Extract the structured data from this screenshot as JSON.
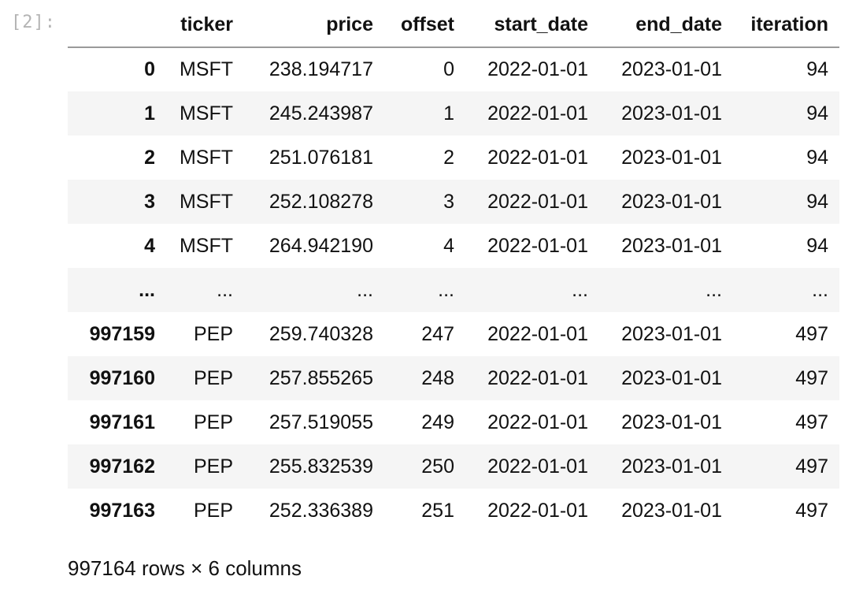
{
  "cell": {
    "prompt": "[2]:"
  },
  "table": {
    "columns": [
      "",
      "ticker",
      "price",
      "offset",
      "start_date",
      "end_date",
      "iteration"
    ],
    "rows": [
      [
        "0",
        "MSFT",
        "238.194717",
        "0",
        "2022-01-01",
        "2023-01-01",
        "94"
      ],
      [
        "1",
        "MSFT",
        "245.243987",
        "1",
        "2022-01-01",
        "2023-01-01",
        "94"
      ],
      [
        "2",
        "MSFT",
        "251.076181",
        "2",
        "2022-01-01",
        "2023-01-01",
        "94"
      ],
      [
        "3",
        "MSFT",
        "252.108278",
        "3",
        "2022-01-01",
        "2023-01-01",
        "94"
      ],
      [
        "4",
        "MSFT",
        "264.942190",
        "4",
        "2022-01-01",
        "2023-01-01",
        "94"
      ],
      [
        "...",
        "...",
        "...",
        "...",
        "...",
        "...",
        "..."
      ],
      [
        "997159",
        "PEP",
        "259.740328",
        "247",
        "2022-01-01",
        "2023-01-01",
        "497"
      ],
      [
        "997160",
        "PEP",
        "257.855265",
        "248",
        "2022-01-01",
        "2023-01-01",
        "497"
      ],
      [
        "997161",
        "PEP",
        "257.519055",
        "249",
        "2022-01-01",
        "2023-01-01",
        "497"
      ],
      [
        "997162",
        "PEP",
        "255.832539",
        "250",
        "2022-01-01",
        "2023-01-01",
        "497"
      ],
      [
        "997163",
        "PEP",
        "252.336389",
        "251",
        "2022-01-01",
        "2023-01-01",
        "497"
      ]
    ]
  },
  "shape_text": "997164 rows × 6 columns"
}
